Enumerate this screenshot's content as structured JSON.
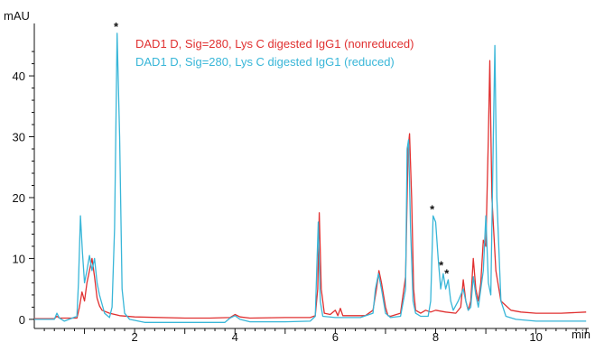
{
  "chart_data": {
    "type": "line",
    "title": "",
    "xlabel": "min",
    "ylabel": "mAU",
    "xlim": [
      0,
      11.05
    ],
    "ylim": [
      -1.5,
      49.5
    ],
    "x_ticks": [
      2,
      4,
      6,
      8,
      10
    ],
    "y_ticks": [
      0,
      10,
      20,
      30,
      40
    ],
    "grid": false,
    "legend_position": "top-center",
    "series": [
      {
        "name": "DAD1 D, Sig=280, Lys C digested IgG1 (nonreduced)",
        "color": "#e03030",
        "points": [
          [
            0.0,
            0.1
          ],
          [
            0.4,
            0.1
          ],
          [
            0.45,
            0.5
          ],
          [
            0.5,
            0.2
          ],
          [
            0.85,
            0.2
          ],
          [
            0.9,
            2.0
          ],
          [
            0.95,
            4.5
          ],
          [
            1.0,
            3.0
          ],
          [
            1.05,
            6.0
          ],
          [
            1.1,
            8.0
          ],
          [
            1.15,
            10.0
          ],
          [
            1.2,
            7.0
          ],
          [
            1.25,
            3.5
          ],
          [
            1.3,
            2.2
          ],
          [
            1.35,
            1.5
          ],
          [
            1.5,
            1.0
          ],
          [
            1.7,
            0.6
          ],
          [
            2.0,
            0.4
          ],
          [
            3.0,
            0.2
          ],
          [
            3.5,
            0.2
          ],
          [
            3.9,
            0.3
          ],
          [
            4.0,
            0.8
          ],
          [
            4.1,
            0.4
          ],
          [
            4.3,
            0.2
          ],
          [
            5.0,
            0.3
          ],
          [
            5.5,
            0.3
          ],
          [
            5.6,
            0.6
          ],
          [
            5.65,
            5.0
          ],
          [
            5.68,
            17.5
          ],
          [
            5.72,
            5.0
          ],
          [
            5.78,
            1.0
          ],
          [
            5.9,
            0.8
          ],
          [
            6.0,
            1.5
          ],
          [
            6.05,
            0.6
          ],
          [
            6.1,
            1.8
          ],
          [
            6.15,
            0.6
          ],
          [
            6.3,
            0.6
          ],
          [
            6.6,
            0.6
          ],
          [
            6.75,
            1.5
          ],
          [
            6.82,
            5.0
          ],
          [
            6.87,
            8.0
          ],
          [
            6.92,
            6.0
          ],
          [
            7.0,
            2.0
          ],
          [
            7.05,
            0.6
          ],
          [
            7.1,
            0.5
          ],
          [
            7.3,
            1.0
          ],
          [
            7.4,
            7.0
          ],
          [
            7.45,
            28.0
          ],
          [
            7.48,
            30.5
          ],
          [
            7.52,
            20.0
          ],
          [
            7.56,
            5.0
          ],
          [
            7.6,
            1.5
          ],
          [
            7.7,
            1.0
          ],
          [
            7.8,
            1.5
          ],
          [
            7.9,
            1.2
          ],
          [
            8.0,
            1.5
          ],
          [
            8.2,
            1.2
          ],
          [
            8.4,
            1.0
          ],
          [
            8.5,
            2.0
          ],
          [
            8.55,
            6.5
          ],
          [
            8.6,
            3.0
          ],
          [
            8.65,
            1.5
          ],
          [
            8.7,
            3.0
          ],
          [
            8.75,
            10.0
          ],
          [
            8.8,
            5.0
          ],
          [
            8.85,
            3.0
          ],
          [
            8.9,
            6.0
          ],
          [
            8.95,
            13.0
          ],
          [
            9.0,
            12.0
          ],
          [
            9.05,
            30.0
          ],
          [
            9.08,
            42.5
          ],
          [
            9.12,
            20.0
          ],
          [
            9.2,
            8.0
          ],
          [
            9.3,
            3.0
          ],
          [
            9.5,
            1.5
          ],
          [
            9.7,
            1.2
          ],
          [
            10.0,
            1.0
          ],
          [
            10.5,
            1.0
          ],
          [
            11.0,
            1.2
          ]
        ]
      },
      {
        "name": "DAD1 D, Sig=280, Lys C digested IgG1 (reduced)",
        "color": "#38b6d8",
        "points": [
          [
            0.0,
            0.0
          ],
          [
            0.4,
            0.0
          ],
          [
            0.45,
            1.0
          ],
          [
            0.5,
            0.2
          ],
          [
            0.6,
            -0.3
          ],
          [
            0.85,
            0.5
          ],
          [
            0.88,
            6.0
          ],
          [
            0.92,
            17.0
          ],
          [
            0.96,
            11.0
          ],
          [
            1.0,
            6.0
          ],
          [
            1.05,
            8.0
          ],
          [
            1.1,
            10.5
          ],
          [
            1.15,
            8.0
          ],
          [
            1.2,
            10.0
          ],
          [
            1.25,
            6.0
          ],
          [
            1.3,
            4.0
          ],
          [
            1.35,
            2.5
          ],
          [
            1.4,
            1.0
          ],
          [
            1.5,
            0.3
          ],
          [
            1.55,
            2.0
          ],
          [
            1.6,
            15.0
          ],
          [
            1.65,
            47.0
          ],
          [
            1.7,
            30.0
          ],
          [
            1.75,
            5.0
          ],
          [
            1.8,
            1.0
          ],
          [
            1.9,
            0.0
          ],
          [
            2.2,
            -0.5
          ],
          [
            3.0,
            -0.5
          ],
          [
            3.5,
            -0.5
          ],
          [
            3.8,
            -0.5
          ],
          [
            3.9,
            0.2
          ],
          [
            4.0,
            0.6
          ],
          [
            4.1,
            0.0
          ],
          [
            4.3,
            -0.4
          ],
          [
            5.0,
            -0.4
          ],
          [
            5.5,
            -0.3
          ],
          [
            5.6,
            0.5
          ],
          [
            5.63,
            8.0
          ],
          [
            5.66,
            16.0
          ],
          [
            5.7,
            3.0
          ],
          [
            5.75,
            0.5
          ],
          [
            6.0,
            0.3
          ],
          [
            6.5,
            0.3
          ],
          [
            6.75,
            1.0
          ],
          [
            6.8,
            5.0
          ],
          [
            6.86,
            7.5
          ],
          [
            6.92,
            5.0
          ],
          [
            7.0,
            1.0
          ],
          [
            7.1,
            0.3
          ],
          [
            7.3,
            0.5
          ],
          [
            7.4,
            5.0
          ],
          [
            7.43,
            28.0
          ],
          [
            7.46,
            29.5
          ],
          [
            7.5,
            15.0
          ],
          [
            7.55,
            3.0
          ],
          [
            7.6,
            1.0
          ],
          [
            7.7,
            0.5
          ],
          [
            7.85,
            0.5
          ],
          [
            7.9,
            3.0
          ],
          [
            7.95,
            17.0
          ],
          [
            8.0,
            16.0
          ],
          [
            8.05,
            10.0
          ],
          [
            8.1,
            5.0
          ],
          [
            8.15,
            7.5
          ],
          [
            8.2,
            5.0
          ],
          [
            8.25,
            6.5
          ],
          [
            8.3,
            3.0
          ],
          [
            8.35,
            1.5
          ],
          [
            8.45,
            3.0
          ],
          [
            8.55,
            5.0
          ],
          [
            8.6,
            3.0
          ],
          [
            8.65,
            1.5
          ],
          [
            8.7,
            2.0
          ],
          [
            8.75,
            7.0
          ],
          [
            8.8,
            4.0
          ],
          [
            8.85,
            2.0
          ],
          [
            8.95,
            8.0
          ],
          [
            9.0,
            17.0
          ],
          [
            9.05,
            6.0
          ],
          [
            9.1,
            4.0
          ],
          [
            9.15,
            30.0
          ],
          [
            9.18,
            45.0
          ],
          [
            9.22,
            20.0
          ],
          [
            9.3,
            3.0
          ],
          [
            9.4,
            0.5
          ],
          [
            9.6,
            0.0
          ],
          [
            10.0,
            -0.3
          ],
          [
            11.0,
            -0.3
          ]
        ]
      }
    ],
    "annotations": [
      {
        "text": "*",
        "x": 1.63,
        "y": 47.4
      },
      {
        "text": "*",
        "x": 7.93,
        "y": 17.4
      },
      {
        "text": "*",
        "x": 8.11,
        "y": 8.2
      },
      {
        "text": "*",
        "x": 8.22,
        "y": 6.9
      }
    ]
  }
}
